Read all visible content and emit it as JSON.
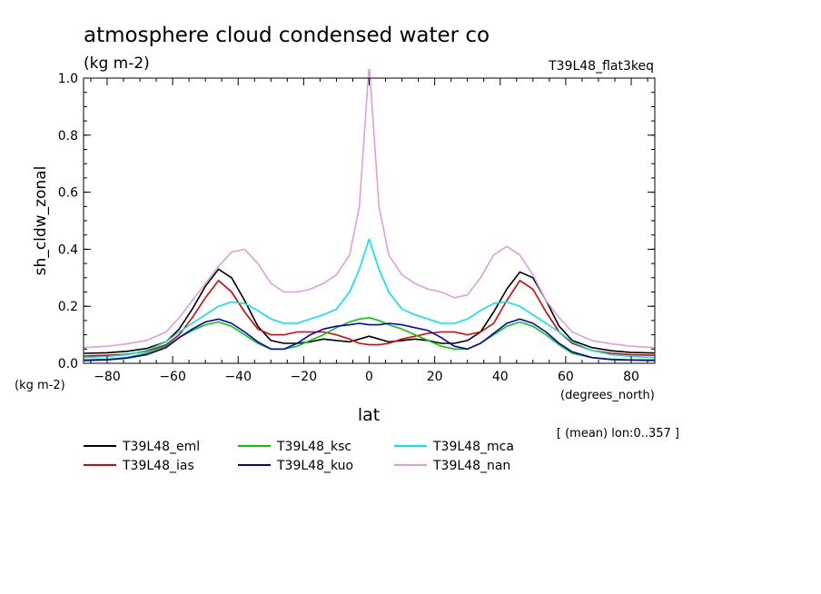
{
  "chart_data": {
    "type": "line",
    "title": "atmosphere cloud condensed water co",
    "subtitle": "(kg m-2)",
    "run_label": "T39L48_flat3keq",
    "ylabel": "sh_cldw_zonal",
    "y_units": "(kg m-2)",
    "xlabel": "lat",
    "x_units": "(degrees_north)",
    "footnote": "[ (mean) lon:0..357 ]",
    "xlim": [
      -87.2,
      87.2
    ],
    "ylim": [
      0,
      1.0
    ],
    "x_ticks": [
      -80,
      -60,
      -40,
      -20,
      0,
      20,
      40,
      60,
      80
    ],
    "x_tick_labels": [
      "−80",
      "−60",
      "−40",
      "−20",
      "0",
      "20",
      "40",
      "60",
      "80"
    ],
    "y_ticks": [
      0.0,
      0.2,
      0.4,
      0.6,
      0.8,
      1.0
    ],
    "y_tick_labels": [
      "0.0",
      "0.2",
      "0.4",
      "0.6",
      "0.8",
      "1.0"
    ],
    "grid": false,
    "legend_placement": "bottom",
    "x": [
      -87,
      -80,
      -74,
      -68,
      -62,
      -58,
      -54,
      -50,
      -46,
      -42,
      -38,
      -34,
      -30,
      -26,
      -22,
      -18,
      -14,
      -10,
      -6,
      -3,
      0,
      3,
      6,
      10,
      14,
      18,
      22,
      26,
      30,
      34,
      38,
      42,
      46,
      50,
      54,
      58,
      62,
      68,
      74,
      80,
      87
    ],
    "series": [
      {
        "name": "T39L48_eml",
        "color": "#000000",
        "values": [
          0.035,
          0.037,
          0.042,
          0.052,
          0.075,
          0.12,
          0.19,
          0.27,
          0.33,
          0.3,
          0.22,
          0.13,
          0.08,
          0.07,
          0.07,
          0.075,
          0.085,
          0.08,
          0.075,
          0.085,
          0.095,
          0.085,
          0.075,
          0.08,
          0.085,
          0.08,
          0.07,
          0.07,
          0.08,
          0.11,
          0.18,
          0.26,
          0.32,
          0.3,
          0.22,
          0.13,
          0.08,
          0.055,
          0.044,
          0.038,
          0.036
        ]
      },
      {
        "name": "T39L48_ias",
        "color": "#e00000",
        "values": [
          0.025,
          0.028,
          0.032,
          0.042,
          0.065,
          0.1,
          0.16,
          0.23,
          0.29,
          0.25,
          0.18,
          0.12,
          0.1,
          0.1,
          0.11,
          0.11,
          0.11,
          0.1,
          0.085,
          0.07,
          0.065,
          0.065,
          0.07,
          0.085,
          0.095,
          0.105,
          0.11,
          0.11,
          0.1,
          0.11,
          0.14,
          0.22,
          0.29,
          0.26,
          0.18,
          0.11,
          0.07,
          0.045,
          0.035,
          0.03,
          0.028
        ]
      },
      {
        "name": "T39L48_ksc",
        "color": "#00cc00",
        "values": [
          0.012,
          0.014,
          0.02,
          0.035,
          0.06,
          0.09,
          0.115,
          0.135,
          0.145,
          0.13,
          0.1,
          0.07,
          0.05,
          0.05,
          0.06,
          0.08,
          0.1,
          0.125,
          0.145,
          0.155,
          0.16,
          0.15,
          0.135,
          0.12,
          0.1,
          0.08,
          0.06,
          0.05,
          0.05,
          0.07,
          0.1,
          0.13,
          0.145,
          0.13,
          0.1,
          0.065,
          0.035,
          0.02,
          0.014,
          0.012,
          0.012
        ]
      },
      {
        "name": "T39L48_kuo",
        "color": "#0000cc",
        "values": [
          0.01,
          0.012,
          0.018,
          0.03,
          0.055,
          0.09,
          0.12,
          0.145,
          0.155,
          0.14,
          0.11,
          0.075,
          0.05,
          0.05,
          0.07,
          0.1,
          0.12,
          0.13,
          0.135,
          0.14,
          0.135,
          0.135,
          0.14,
          0.135,
          0.125,
          0.115,
          0.09,
          0.06,
          0.05,
          0.07,
          0.105,
          0.14,
          0.155,
          0.14,
          0.11,
          0.07,
          0.04,
          0.02,
          0.013,
          0.011,
          0.01
        ]
      },
      {
        "name": "T39L48_mca",
        "color": "#00e8e8",
        "values": [
          0.02,
          0.024,
          0.03,
          0.045,
          0.075,
          0.11,
          0.14,
          0.17,
          0.2,
          0.215,
          0.21,
          0.185,
          0.155,
          0.14,
          0.14,
          0.155,
          0.17,
          0.19,
          0.25,
          0.33,
          0.435,
          0.33,
          0.25,
          0.19,
          0.17,
          0.155,
          0.14,
          0.14,
          0.155,
          0.185,
          0.21,
          0.215,
          0.2,
          0.17,
          0.14,
          0.11,
          0.075,
          0.045,
          0.03,
          0.024,
          0.02
        ]
      },
      {
        "name": "T39L48_nan",
        "color": "#dda0dd",
        "values": [
          0.055,
          0.06,
          0.068,
          0.08,
          0.11,
          0.16,
          0.22,
          0.28,
          0.34,
          0.39,
          0.4,
          0.35,
          0.28,
          0.25,
          0.25,
          0.26,
          0.28,
          0.31,
          0.38,
          0.55,
          1.05,
          0.55,
          0.38,
          0.31,
          0.28,
          0.26,
          0.25,
          0.23,
          0.24,
          0.3,
          0.38,
          0.41,
          0.38,
          0.31,
          0.22,
          0.16,
          0.11,
          0.08,
          0.068,
          0.06,
          0.055
        ]
      }
    ]
  }
}
